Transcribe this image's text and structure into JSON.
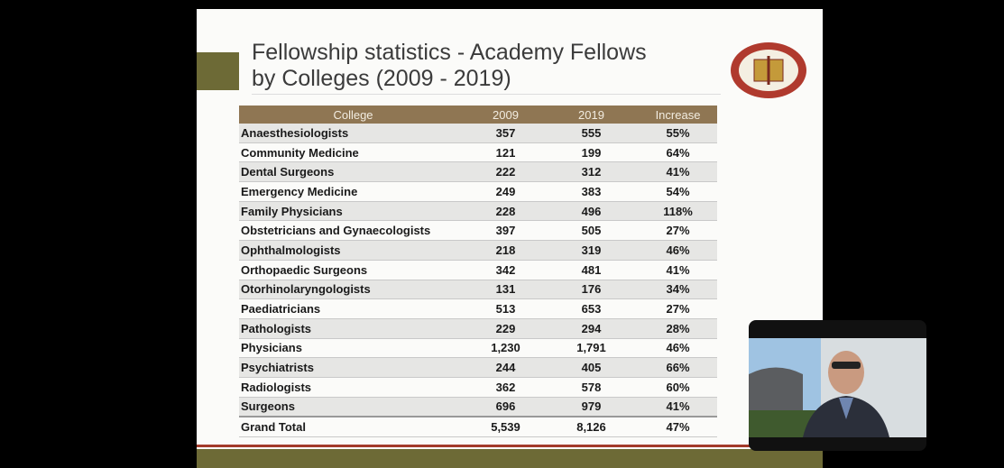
{
  "slide": {
    "title": [
      "Fellowship statistics - Academy Fellows",
      "by Colleges (2009 - 2019)"
    ],
    "table": {
      "header": [
        "College",
        "2009",
        "2019",
        "Increase"
      ],
      "rows": [
        [
          "Anaesthesiologists",
          "357",
          "555",
          "55%"
        ],
        [
          "Community Medicine",
          "121",
          "199",
          "64%"
        ],
        [
          "Dental Surgeons",
          "222",
          "312",
          "41%"
        ],
        [
          "Emergency Medicine",
          "249",
          "383",
          "54%"
        ],
        [
          "Family Physicians",
          "228",
          "496",
          "118%"
        ],
        [
          "Obstetricians and Gynaecologists",
          "397",
          "505",
          "27%"
        ],
        [
          "Ophthalmologists",
          "218",
          "319",
          "46%"
        ],
        [
          "Orthopaedic Surgeons",
          "342",
          "481",
          "41%"
        ],
        [
          "Otorhinolaryngologists",
          "131",
          "176",
          "34%"
        ],
        [
          "Paediatricians",
          "513",
          "653",
          "27%"
        ],
        [
          "Pathologists",
          "229",
          "294",
          "28%"
        ],
        [
          "Physicians",
          "1,230",
          "1,791",
          "46%"
        ],
        [
          "Psychiatrists",
          "244",
          "405",
          "66%"
        ],
        [
          "Radiologists",
          "362",
          "578",
          "60%"
        ],
        [
          "Surgeons",
          "696",
          "979",
          "41%"
        ],
        [
          "Grand Total",
          "5,539",
          "8,126",
          "47%"
        ]
      ]
    }
  }
}
